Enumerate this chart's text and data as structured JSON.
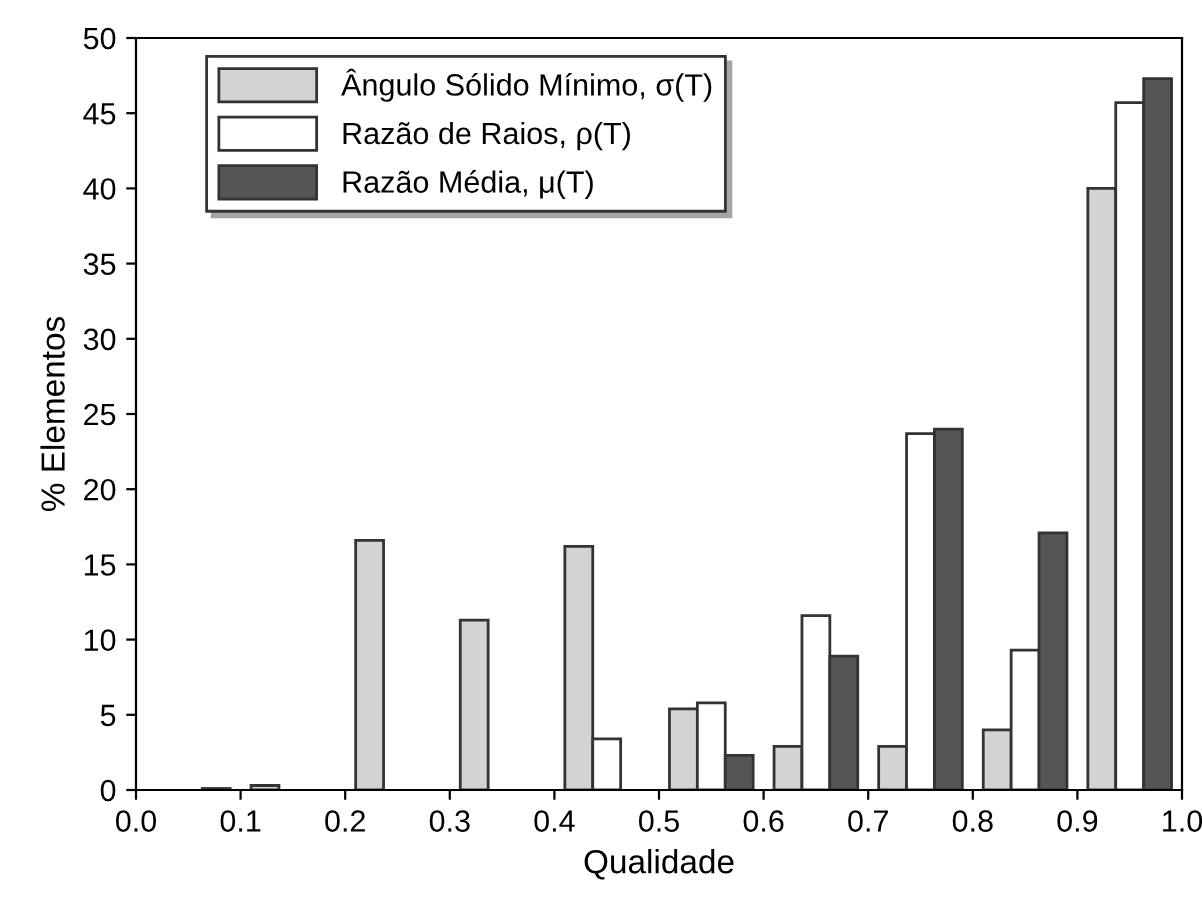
{
  "chart_data": {
    "type": "bar",
    "xlabel": "Qualidade",
    "ylabel": "% Elementos",
    "x": [
      0.05,
      0.15,
      0.25,
      0.35,
      0.45,
      0.55,
      0.65,
      0.75,
      0.85,
      0.95
    ],
    "series": [
      {
        "name": "Ângulo Sólido Mínimo, σ(T)",
        "color": "#d3d3d3",
        "values": [
          null,
          0.3,
          16.6,
          11.3,
          16.2,
          5.4,
          2.9,
          2.9,
          4.0,
          40.0
        ]
      },
      {
        "name": "Razão de Raios, ρ(T)",
        "color": "#ffffff",
        "values": [
          null,
          null,
          null,
          null,
          3.4,
          5.8,
          11.6,
          23.7,
          9.3,
          45.7
        ]
      },
      {
        "name": "Razão Média, μ(T)",
        "color": "#555555",
        "values": [
          0.1,
          null,
          null,
          null,
          null,
          2.3,
          8.9,
          24.0,
          17.1,
          47.3
        ]
      }
    ],
    "xlim": [
      0.0,
      1.0
    ],
    "xticks": [
      {
        "value": 0.0,
        "label": "0.0"
      },
      0.1,
      0.2,
      0.3,
      0.4,
      0.5,
      0.6,
      0.7,
      0.8,
      0.9,
      {
        "value": 1.0,
        "label": "1.0"
      }
    ],
    "ylim": [
      0,
      50
    ],
    "yticks": [
      0,
      5,
      10,
      15,
      20,
      25,
      30,
      35,
      40,
      45,
      50
    ],
    "grid": false,
    "legend": "top left"
  }
}
